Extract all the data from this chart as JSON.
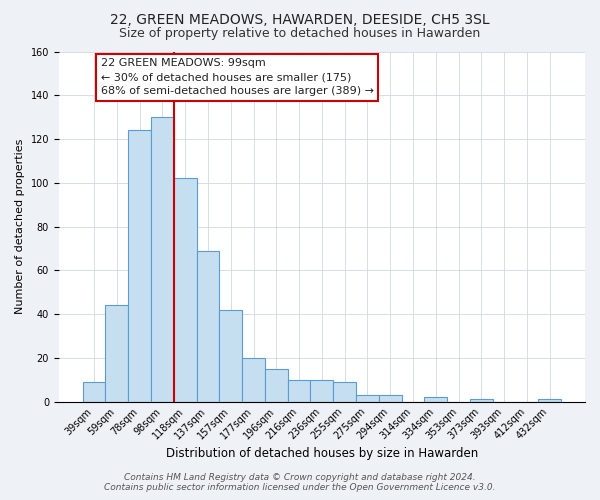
{
  "title": "22, GREEN MEADOWS, HAWARDEN, DEESIDE, CH5 3SL",
  "subtitle": "Size of property relative to detached houses in Hawarden",
  "xlabel": "Distribution of detached houses by size in Hawarden",
  "ylabel": "Number of detached properties",
  "bar_labels": [
    "39sqm",
    "59sqm",
    "78sqm",
    "98sqm",
    "118sqm",
    "137sqm",
    "157sqm",
    "177sqm",
    "196sqm",
    "216sqm",
    "236sqm",
    "255sqm",
    "275sqm",
    "294sqm",
    "314sqm",
    "334sqm",
    "353sqm",
    "373sqm",
    "393sqm",
    "412sqm",
    "432sqm"
  ],
  "bar_heights": [
    9,
    44,
    124,
    130,
    102,
    69,
    42,
    20,
    15,
    10,
    10,
    9,
    3,
    3,
    0,
    2,
    0,
    1,
    0,
    0,
    1
  ],
  "bar_color": "#c5dff0",
  "bar_edge_color": "#5b9bd5",
  "vline_color": "#cc0000",
  "annotation_box_text": "22 GREEN MEADOWS: 99sqm\n← 30% of detached houses are smaller (175)\n68% of semi-detached houses are larger (389) →",
  "ylim": [
    0,
    160
  ],
  "footer_text": "Contains HM Land Registry data © Crown copyright and database right 2024.\nContains public sector information licensed under the Open Government Licence v3.0.",
  "title_fontsize": 10,
  "subtitle_fontsize": 9,
  "xlabel_fontsize": 8.5,
  "ylabel_fontsize": 8,
  "tick_fontsize": 7,
  "annotation_fontsize": 8,
  "footer_fontsize": 6.5,
  "background_color": "#eef2f7",
  "plot_background_color": "#ffffff"
}
